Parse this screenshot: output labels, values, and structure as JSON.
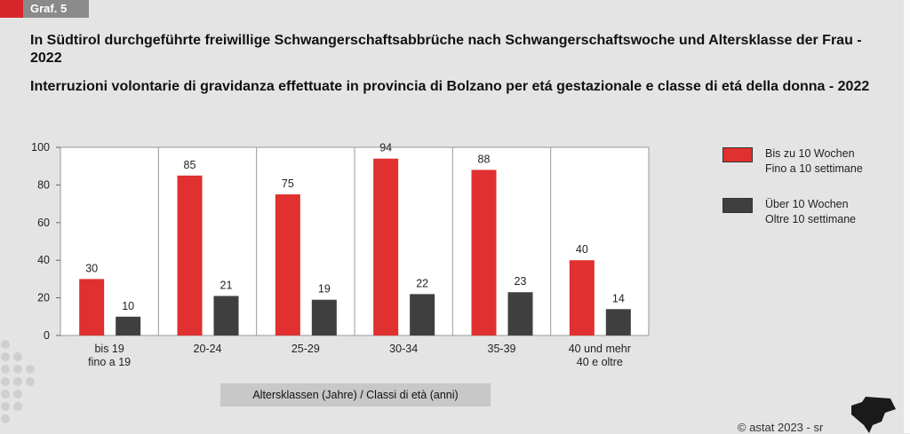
{
  "tag": "Graf. 5",
  "title_de": "In Südtirol durchgeführte freiwillige Schwangerschaftsabbrüche nach Schwangerschaftswoche und Altersklasse der Frau - 2022",
  "title_it": "Interruzioni volontarie di gravidanza effettuate in provincia di Bolzano per etá gestazionale e classe di etá della donna - 2022",
  "copyright": "© astat 2023 - sr",
  "chart_data": {
    "type": "bar",
    "title": "In Südtirol durchgeführte freiwillige Schwangerschaftsabbrüche nach Schwangerschaftswoche und Altersklasse der Frau - 2022",
    "xlabel": "Altersklassen (Jahre) / Classi di età (anni)",
    "ylabel": "",
    "ylim": [
      0,
      100
    ],
    "yticks": [
      0,
      20,
      40,
      60,
      80,
      100
    ],
    "categories": [
      [
        "bis 19",
        "fino a 19"
      ],
      [
        "20-24"
      ],
      [
        "25-29"
      ],
      [
        "30-34"
      ],
      [
        "35-39"
      ],
      [
        "40 und mehr",
        "40 e oltre"
      ]
    ],
    "series": [
      {
        "name": "Bis zu 10 Wochen / Fino a 10 settimane",
        "name_lines": [
          "Bis zu 10 Wochen",
          "Fino a 10 settimane"
        ],
        "color": "#e0302f",
        "values": [
          30,
          85,
          75,
          94,
          88,
          40
        ]
      },
      {
        "name": "Über 10 Wochen / Oltre 10 settimane",
        "name_lines": [
          "Über 10 Wochen",
          "Oltre 10 settimane"
        ],
        "color": "#3f3f3f",
        "values": [
          10,
          21,
          19,
          22,
          23,
          14
        ]
      }
    ],
    "grid": false,
    "legend": "right"
  }
}
